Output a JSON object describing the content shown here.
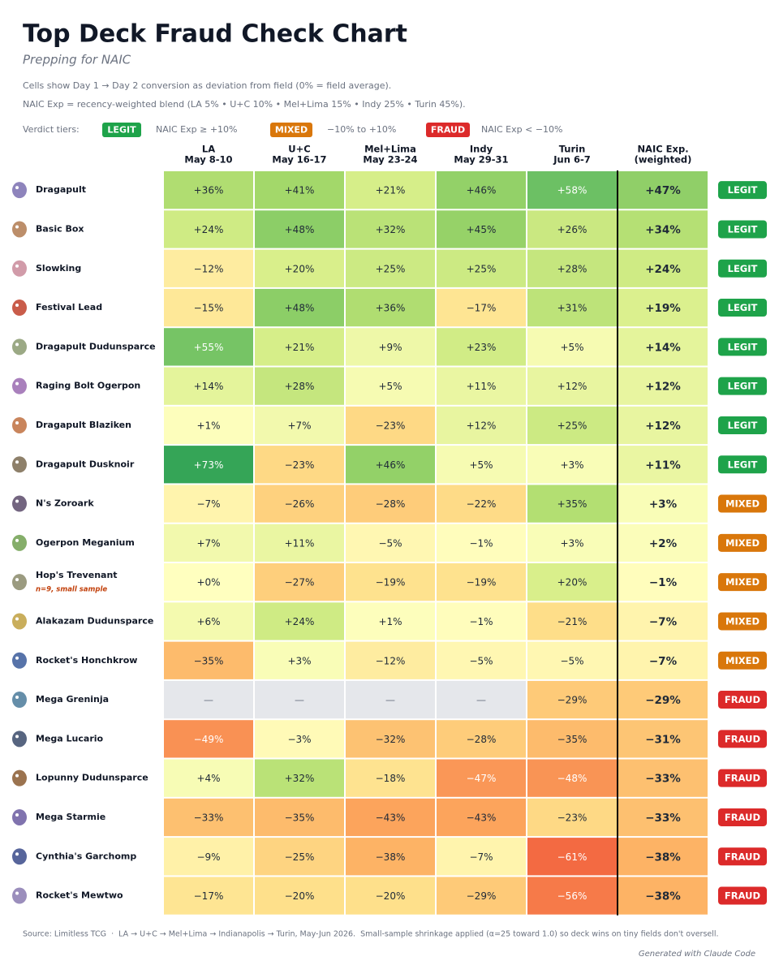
{
  "header": {
    "title": "Top Deck Fraud Check Chart",
    "subtitle": "Prepping for NAIC",
    "notes": [
      "Cells show Day 1 → Day 2 conversion as deviation from field (0% = field average).",
      "NAIC Exp = recency-weighted blend (LA 5% • U+C 10% • Mel+Lima 15% • Indy 25% • Turin 45%)."
    ],
    "tiers_label": "Verdict tiers:",
    "tiers": [
      {
        "badge": "LEGIT",
        "text": "NAIC Exp ≥ +10%",
        "color": "#1ea34a"
      },
      {
        "badge": "MIXED",
        "text": "−10% to +10%",
        "color": "#d9770b"
      },
      {
        "badge": "FRAUD",
        "text": "NAIC Exp < −10%",
        "color": "#dc2a2a"
      }
    ]
  },
  "table": {
    "columns": [
      {
        "name": "LA",
        "date": "May 8-10"
      },
      {
        "name": "U+C",
        "date": "May 16-17"
      },
      {
        "name": "Mel+Lima",
        "date": "May 23-24"
      },
      {
        "name": "Indy",
        "date": "May 29-31"
      },
      {
        "name": "Turin",
        "date": "Jun 6-7"
      },
      {
        "name": "NAIC Exp.",
        "date": "(weighted)"
      }
    ],
    "rows": [
      {
        "deck": "Dragapult",
        "cells": [
          "+36%",
          "+41%",
          "+21%",
          "+46%",
          "+58%",
          "+47%"
        ],
        "verdict": "LEGIT"
      },
      {
        "deck": "Basic Box",
        "cells": [
          "+24%",
          "+48%",
          "+32%",
          "+45%",
          "+26%",
          "+34%"
        ],
        "verdict": "LEGIT"
      },
      {
        "deck": "Slowking",
        "cells": [
          "−12%",
          "+20%",
          "+25%",
          "+25%",
          "+28%",
          "+24%"
        ],
        "verdict": "LEGIT"
      },
      {
        "deck": "Festival Lead",
        "cells": [
          "−15%",
          "+48%",
          "+36%",
          "−17%",
          "+31%",
          "+19%"
        ],
        "verdict": "LEGIT"
      },
      {
        "deck": "Dragapult Dudunsparce",
        "cells": [
          "+55%",
          "+21%",
          "+9%",
          "+23%",
          "+5%",
          "+14%"
        ],
        "verdict": "LEGIT"
      },
      {
        "deck": "Raging Bolt Ogerpon",
        "cells": [
          "+14%",
          "+28%",
          "+5%",
          "+11%",
          "+12%",
          "+12%"
        ],
        "verdict": "LEGIT"
      },
      {
        "deck": "Dragapult Blaziken",
        "cells": [
          "+1%",
          "+7%",
          "−23%",
          "+12%",
          "+25%",
          "+12%"
        ],
        "verdict": "LEGIT"
      },
      {
        "deck": "Dragapult Dusknoir",
        "cells": [
          "+73%",
          "−23%",
          "+46%",
          "+5%",
          "+3%",
          "+11%"
        ],
        "verdict": "LEGIT"
      },
      {
        "deck": "N's Zoroark",
        "cells": [
          "−7%",
          "−26%",
          "−28%",
          "−22%",
          "+35%",
          "+3%"
        ],
        "verdict": "MIXED"
      },
      {
        "deck": "Ogerpon Meganium",
        "cells": [
          "+7%",
          "+11%",
          "−5%",
          "−1%",
          "+3%",
          "+2%"
        ],
        "verdict": "MIXED"
      },
      {
        "deck": "Hop's Trevenant",
        "note": "n=9, small sample",
        "cells": [
          "+0%",
          "−27%",
          "−19%",
          "−19%",
          "+20%",
          "−1%"
        ],
        "verdict": "MIXED"
      },
      {
        "deck": "Alakazam Dudunsparce",
        "cells": [
          "+6%",
          "+24%",
          "+1%",
          "−1%",
          "−21%",
          "−7%"
        ],
        "verdict": "MIXED"
      },
      {
        "deck": "Rocket's Honchkrow",
        "cells": [
          "−35%",
          "+3%",
          "−12%",
          "−5%",
          "−5%",
          "−7%"
        ],
        "verdict": "MIXED"
      },
      {
        "deck": "Mega Greninja",
        "cells": [
          "—",
          "—",
          "—",
          "—",
          "−29%",
          "−29%"
        ],
        "verdict": "FRAUD"
      },
      {
        "deck": "Mega Lucario",
        "cells": [
          "−49%",
          "−3%",
          "−32%",
          "−28%",
          "−35%",
          "−31%"
        ],
        "verdict": "FRAUD"
      },
      {
        "deck": "Lopunny Dudunsparce",
        "cells": [
          "+4%",
          "+32%",
          "−18%",
          "−47%",
          "−48%",
          "−33%"
        ],
        "verdict": "FRAUD"
      },
      {
        "deck": "Mega Starmie",
        "cells": [
          "−33%",
          "−35%",
          "−43%",
          "−43%",
          "−23%",
          "−33%"
        ],
        "verdict": "FRAUD"
      },
      {
        "deck": "Cynthia's Garchomp",
        "cells": [
          "−9%",
          "−25%",
          "−38%",
          "−7%",
          "−61%",
          "−38%"
        ],
        "verdict": "FRAUD"
      },
      {
        "deck": "Rocket's Mewtwo",
        "cells": [
          "−17%",
          "−20%",
          "−20%",
          "−29%",
          "−56%",
          "−38%"
        ],
        "verdict": "FRAUD"
      }
    ]
  },
  "footer": {
    "source": "Source: Limitless TCG  ·  LA → U+C → Mel+Lima → Indianapolis → Turin, May-Jun 2026.  Small-sample shrinkage applied (α=25 toward 1.0) so deck wins on tiny fields don't oversell.",
    "credit": "Generated with Claude Code"
  }
}
